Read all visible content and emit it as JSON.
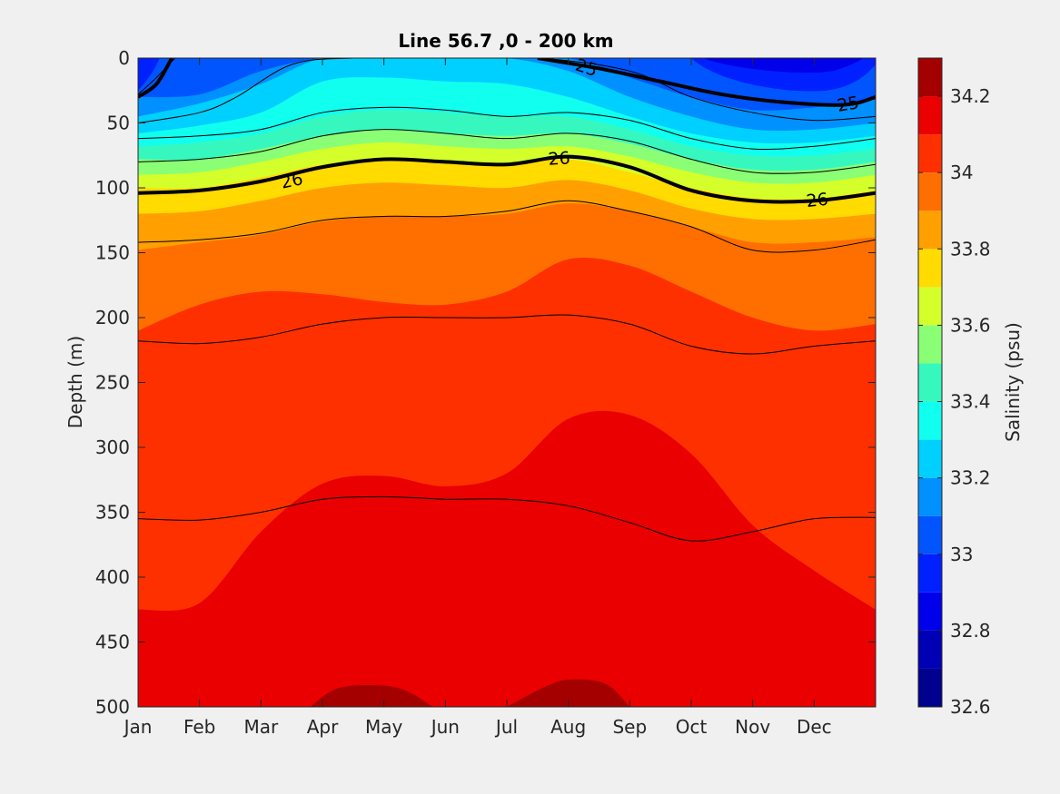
{
  "chart_data": {
    "type": "heatmap",
    "subtype": "filled contour with density contour overlay",
    "title": "Line 56.7 ,0 - 200 km",
    "xlabel": "",
    "ylabel": "Depth (m)",
    "y_reversed": true,
    "x_tick_labels": [
      "Jan",
      "Feb",
      "Mar",
      "Apr",
      "May",
      "Jun",
      "Jul",
      "Aug",
      "Sep",
      "Oct",
      "Nov",
      "Dec"
    ],
    "y_ticks": [
      0,
      50,
      100,
      150,
      200,
      250,
      300,
      350,
      400,
      450,
      500
    ],
    "ylim": [
      0,
      500
    ],
    "colorbar": {
      "label": "Salinity (psu)",
      "range": [
        32.6,
        34.3
      ],
      "ticks": [
        32.6,
        32.8,
        33,
        33.2,
        33.4,
        33.6,
        33.8,
        34,
        34.2
      ],
      "levels": [
        {
          "min": 32.6,
          "max": 32.7,
          "color": "#00008f"
        },
        {
          "min": 32.7,
          "max": 32.8,
          "color": "#0000b5"
        },
        {
          "min": 32.8,
          "max": 32.9,
          "color": "#0000ea"
        },
        {
          "min": 32.9,
          "max": 33.0,
          "color": "#0020ff"
        },
        {
          "min": 33.0,
          "max": 33.1,
          "color": "#0055ff"
        },
        {
          "min": 33.1,
          "max": 33.2,
          "color": "#0090ff"
        },
        {
          "min": 33.2,
          "max": 33.3,
          "color": "#00d0ff"
        },
        {
          "min": 33.3,
          "max": 33.4,
          "color": "#10ffef"
        },
        {
          "min": 33.4,
          "max": 33.5,
          "color": "#36f8bf"
        },
        {
          "min": 33.5,
          "max": 33.6,
          "color": "#8aff75"
        },
        {
          "min": 33.6,
          "max": 33.7,
          "color": "#d4ff2a"
        },
        {
          "min": 33.7,
          "max": 33.8,
          "color": "#ffdb00"
        },
        {
          "min": 33.8,
          "max": 33.9,
          "color": "#ff9f00"
        },
        {
          "min": 33.9,
          "max": 34.0,
          "color": "#ff6f00"
        },
        {
          "min": 34.0,
          "max": 34.1,
          "color": "#ff3000"
        },
        {
          "min": 34.1,
          "max": 34.2,
          "color": "#ea0000"
        },
        {
          "min": 34.2,
          "max": 34.3,
          "color": "#a50000"
        }
      ]
    },
    "salinity_fields": [
      {
        "name": "32.9-33.0",
        "color": "#0020ff",
        "depths": [
          [
            0,
            0
          ],
          [
            0.7,
            0
          ],
          [
            1.5,
            0
          ],
          [
            2.5,
            0
          ],
          [
            3.5,
            0
          ],
          [
            4.5,
            0
          ],
          [
            5.5,
            0
          ],
          [
            6.5,
            0
          ],
          [
            7.5,
            0
          ],
          [
            8.5,
            0
          ],
          [
            9.5,
            8
          ],
          [
            10.5,
            15
          ],
          [
            11.5,
            12
          ],
          [
            12,
            10
          ]
        ],
        "mask_top_only": true
      },
      {
        "name": "salinity_bands",
        "note": "band bottoms by month (Jan..Jan next) in metres"
      }
    ],
    "band_bottoms": {
      "x": [
        0,
        1,
        2,
        3,
        4,
        5,
        6,
        7,
        8,
        9,
        10,
        11,
        12
      ],
      "bands": [
        {
          "color": "#0055ff",
          "bottom": [
            30,
            28,
            10,
            0,
            0,
            0,
            0,
            0,
            15,
            30,
            40,
            38,
            32
          ]
        },
        {
          "color": "#0090ff",
          "bottom": [
            45,
            35,
            20,
            0,
            0,
            0,
            0,
            10,
            30,
            45,
            55,
            55,
            50
          ]
        },
        {
          "color": "#00d0ff",
          "bottom": [
            58,
            52,
            42,
            18,
            15,
            18,
            20,
            30,
            45,
            58,
            65,
            65,
            60
          ]
        },
        {
          "color": "#10ffef",
          "bottom": [
            68,
            65,
            58,
            45,
            40,
            42,
            45,
            45,
            55,
            68,
            75,
            75,
            70
          ]
        },
        {
          "color": "#36f8bf",
          "bottom": [
            78,
            78,
            70,
            60,
            55,
            58,
            60,
            58,
            66,
            78,
            86,
            86,
            80
          ]
        },
        {
          "color": "#8aff75",
          "bottom": [
            90,
            88,
            80,
            70,
            65,
            68,
            70,
            68,
            76,
            88,
            96,
            96,
            90
          ]
        },
        {
          "color": "#d4ff2a",
          "bottom": [
            100,
            100,
            92,
            82,
            78,
            80,
            82,
            78,
            88,
            100,
            108,
            108,
            102
          ]
        },
        {
          "color": "#ffdb00",
          "bottom": [
            120,
            118,
            110,
            100,
            96,
            98,
            100,
            94,
            102,
            116,
            124,
            124,
            120
          ]
        },
        {
          "color": "#ff9f00",
          "bottom": [
            148,
            142,
            136,
            126,
            122,
            122,
            120,
            112,
            118,
            130,
            142,
            142,
            138
          ]
        },
        {
          "color": "#ff6f00",
          "bottom": [
            210,
            190,
            180,
            182,
            188,
            190,
            180,
            155,
            160,
            180,
            200,
            210,
            205
          ]
        },
        {
          "color": "#ff3000",
          "bottom": [
            425,
            420,
            365,
            328,
            322,
            330,
            320,
            278,
            275,
            305,
            360,
            395,
            425
          ]
        },
        {
          "color": "#ea0000",
          "bottom": [
            500,
            500,
            500,
            500,
            500,
            500,
            500,
            500,
            500,
            500,
            500,
            500,
            500
          ]
        }
      ],
      "deep_patches": [
        {
          "color": "#a50000",
          "x": [
            2.8,
            3.3,
            4.2,
            4.8
          ],
          "top": [
            500,
            485,
            485,
            500
          ]
        },
        {
          "color": "#a50000",
          "x": [
            6.0,
            6.6,
            7.0,
            7.6,
            8.0
          ],
          "top": [
            500,
            485,
            479,
            482,
            500
          ]
        }
      ]
    },
    "density_contours": [
      {
        "label": "",
        "width": "thin",
        "x": [
          0,
          0.3,
          0.6
        ],
        "y": [
          28,
          15,
          0
        ]
      },
      {
        "label": "",
        "width": "thin",
        "x": [
          0,
          1,
          1.6,
          2.5,
          3.5,
          5,
          6.5,
          8,
          9,
          10,
          11,
          12
        ],
        "y": [
          50,
          42,
          30,
          5,
          0,
          0,
          0,
          10,
          30,
          42,
          48,
          45
        ]
      },
      {
        "label": "",
        "width": "thin",
        "x": [
          0,
          1,
          2,
          3,
          4,
          5,
          6,
          7,
          8,
          9,
          10,
          11,
          12
        ],
        "y": [
          62,
          60,
          55,
          42,
          38,
          40,
          45,
          42,
          48,
          62,
          70,
          68,
          62
        ]
      },
      {
        "label": "",
        "width": "thin",
        "x": [
          0,
          1,
          2,
          3,
          4,
          5,
          6,
          7,
          8,
          9,
          10,
          11,
          12
        ],
        "y": [
          80,
          78,
          72,
          60,
          55,
          58,
          62,
          58,
          64,
          78,
          88,
          88,
          82
        ]
      },
      {
        "label": "26",
        "width": "thick",
        "x": [
          0,
          1,
          2,
          3,
          4,
          5,
          6,
          7,
          8,
          9,
          10,
          11,
          12
        ],
        "y": [
          104,
          102,
          95,
          84,
          78,
          80,
          82,
          76,
          84,
          102,
          110,
          110,
          104
        ]
      },
      {
        "label": "25",
        "width": "thick",
        "x": [
          6.5,
          7.5,
          8.5,
          9.5,
          10.5,
          11.5,
          12
        ],
        "y": [
          0,
          8,
          18,
          28,
          34,
          36,
          30
        ]
      },
      {
        "label": "",
        "width": "thin",
        "x": [
          0,
          1,
          2,
          3,
          4,
          5,
          6,
          7,
          8,
          9,
          10,
          11,
          12
        ],
        "y": [
          142,
          140,
          135,
          125,
          122,
          122,
          118,
          110,
          118,
          130,
          148,
          148,
          140
        ]
      },
      {
        "label": "",
        "width": "thin",
        "x": [
          0,
          1,
          2,
          3,
          4,
          5,
          6,
          7,
          8,
          9,
          10,
          11,
          12
        ],
        "y": [
          218,
          220,
          215,
          205,
          200,
          200,
          200,
          198,
          205,
          222,
          228,
          222,
          218
        ]
      },
      {
        "label": "",
        "width": "thin",
        "x": [
          0,
          1,
          2,
          3,
          4,
          5,
          6,
          7,
          8,
          9,
          10,
          11,
          12
        ],
        "y": [
          355,
          356,
          350,
          340,
          338,
          340,
          340,
          345,
          358,
          372,
          365,
          355,
          354
        ]
      },
      {
        "label": "",
        "width": "thick",
        "x": [
          0,
          0.3,
          0.55
        ],
        "y": [
          30,
          20,
          0
        ]
      }
    ],
    "grid": false,
    "legend": "colorbar-right"
  }
}
